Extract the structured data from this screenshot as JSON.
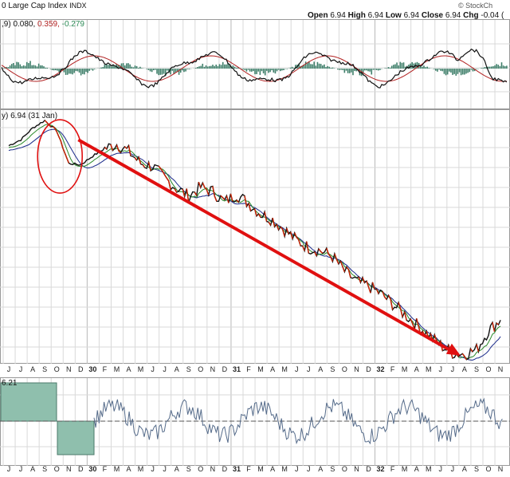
{
  "header": {
    "title": "0 Large Cap Index",
    "exchange": "INDX",
    "copyright": "© StockCh",
    "ohlc": {
      "open_label": "Open",
      "open": "6.94",
      "high_label": "High",
      "high": "6.94",
      "low_label": "Low",
      "low": "6.94",
      "close_label": "Close",
      "close": "6.94",
      "chg_label": "Chg",
      "chg": "-0.04 ("
    }
  },
  "macd_label": {
    "params": ",9)",
    "v1": "0.080,",
    "v2": "0.359,",
    "v3": "-0.279",
    "colors": {
      "v1": "#111111",
      "v2": "#b22222",
      "v3": "#2e8b57"
    }
  },
  "price_label": "y) 6.94 (31 Jan)",
  "lower_label": "6.21",
  "axis_labels": [
    "J",
    "J",
    "A",
    "S",
    "O",
    "N",
    "D",
    "30",
    "F",
    "M",
    "A",
    "M",
    "J",
    "J",
    "A",
    "S",
    "O",
    "N",
    "D",
    "31",
    "F",
    "M",
    "A",
    "M",
    "J",
    "J",
    "A",
    "S",
    "O",
    "N",
    "D",
    "32",
    "F",
    "M",
    "A",
    "M",
    "J",
    "J",
    "A",
    "S",
    "O",
    "N"
  ],
  "bold_labels": [
    "30",
    "31",
    "32"
  ],
  "colors": {
    "price": "#111111",
    "down": "#cc2200",
    "ma_fast": "#2a8a2a",
    "ma_slow": "#1a2a8a",
    "macd_hist": "#3f7f6a",
    "lower_fill": "#8fbfad",
    "lower_line": "#556b8a",
    "annotation": "#e01010",
    "grid": "#d9d9d9"
  },
  "chart_data": {
    "type": "line",
    "title": "0 Large Cap Index INDX",
    "x": [
      "J",
      "J",
      "A",
      "S",
      "O",
      "N",
      "D",
      "30",
      "F",
      "M",
      "A",
      "M",
      "J",
      "J",
      "A",
      "S",
      "O",
      "N",
      "D",
      "31",
      "F",
      "M",
      "A",
      "M",
      "J",
      "J",
      "A",
      "S",
      "O",
      "N",
      "D",
      "32",
      "F",
      "M",
      "A",
      "M",
      "J",
      "J",
      "A",
      "S",
      "O",
      "N"
    ],
    "series": [
      {
        "name": "price",
        "values": [
          12.2,
          12.6,
          13.4,
          13.9,
          13.2,
          11.0,
          10.9,
          11.5,
          12.0,
          12.3,
          11.8,
          11.0,
          10.8,
          10.0,
          9.3,
          8.8,
          9.4,
          9.1,
          8.4,
          8.9,
          8.3,
          7.6,
          7.2,
          6.5,
          5.8,
          5.3,
          5.1,
          4.7,
          3.7,
          3.0,
          2.7,
          2.2,
          1.5,
          0.8,
          0.1,
          -0.6,
          -1.3,
          -1.8,
          -1.9,
          -1.6,
          -0.3,
          0.4
        ]
      }
    ],
    "annotation": "red circle at Oct–Nov peak, red arrow to the Jul 1932 low",
    "grid": true
  }
}
